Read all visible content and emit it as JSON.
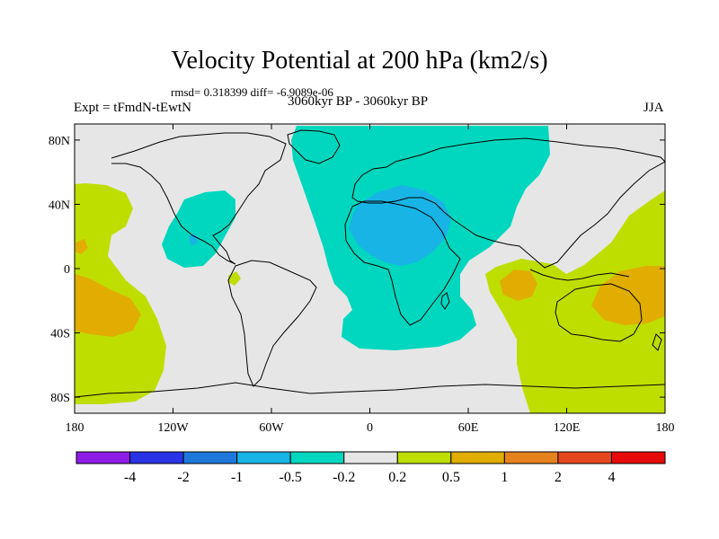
{
  "title": "Velocity Potential at 200 hPa (km2/s)",
  "rmsd_line": "rmsd= 0.318399 diff= -6.9089e-06",
  "expt_label": "Expt = tFmdN-tEwtN",
  "period_label": "3060kyr BP - 3060kyr BP",
  "season_label": "JJA",
  "map": {
    "lon_range": [
      -180,
      180
    ],
    "lat_range": [
      -90,
      90
    ],
    "y_ticks": [
      {
        "lat": 80,
        "label": "80N"
      },
      {
        "lat": 40,
        "label": "40N"
      },
      {
        "lat": 0,
        "label": "0"
      },
      {
        "lat": -40,
        "label": "40S"
      },
      {
        "lat": -80,
        "label": "80S"
      }
    ],
    "x_ticks": [
      {
        "lon": -180,
        "label": "180"
      },
      {
        "lon": -120,
        "label": "120W"
      },
      {
        "lon": -60,
        "label": "60W"
      },
      {
        "lon": 0,
        "label": "0"
      },
      {
        "lon": 60,
        "label": "60E"
      },
      {
        "lon": 120,
        "label": "120E"
      },
      {
        "lon": 180,
        "label": "180"
      }
    ]
  },
  "colors": {
    "bg_neutral": "#e6e6e6",
    "neg_0_5": "#00d7be",
    "neg_1": "#18b4e6",
    "pos_0_2": "#bede00",
    "pos_0_5": "#e0ad00",
    "land_outline": "#000000"
  },
  "colorbar": {
    "colors": [
      "#8c1ce6",
      "#2a32e6",
      "#1e78dc",
      "#18b4e6",
      "#00d7be",
      "#e6e6e6",
      "#bede00",
      "#e0ad00",
      "#e6821e",
      "#e6461e",
      "#e60a0a"
    ],
    "labels": [
      "-4",
      "-2",
      "-1",
      "-0.5",
      "-0.2",
      "0.2",
      "0.5",
      "1",
      "2",
      "4"
    ]
  }
}
